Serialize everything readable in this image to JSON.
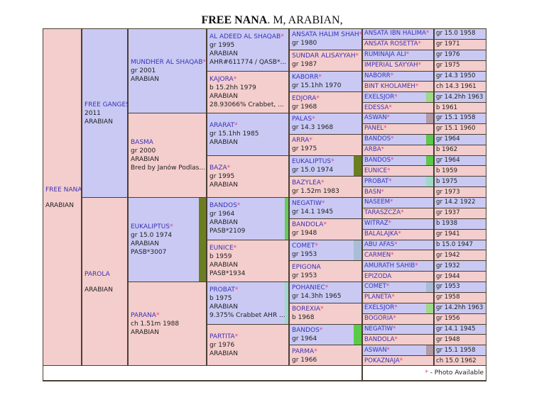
{
  "title": {
    "name": "FREE NANA",
    "rest": ". M, ARABIAN,"
  },
  "legend": {
    "star": "*",
    "text": " - Photo Available"
  },
  "colors": {
    "male": "#c9c9f4",
    "female": "#f4cdcd",
    "name": "#3b33b5",
    "star": "#e2427a"
  },
  "pedigree": [
    [
      {
        "name": "FREE NANA",
        "sex": "f",
        "gap": true,
        "lines": [
          "ARABIAN"
        ]
      }
    ],
    [
      {
        "name": "FREE GANGES",
        "sex": "m",
        "lines": [
          "2011",
          "ARABIAN"
        ]
      },
      {
        "name": "PAROLA",
        "sex": "f",
        "gap": true,
        "lines": [
          "ARABIAN"
        ]
      }
    ],
    [
      {
        "name": "MUNDHER AL SHAQAB",
        "star": "*",
        "sex": "m",
        "lines": [
          "gr 2001",
          "ARABIAN"
        ]
      },
      {
        "name": "BASMA",
        "sex": "f",
        "lines": [
          "gr 2000",
          "ARABIAN",
          "Bred by Janów Podlas..."
        ]
      },
      {
        "name": "EUKALIPTUS",
        "star": "*",
        "sex": "m",
        "marker": "#6b7f22",
        "lines": [
          "gr 15.0 1974",
          "ARABIAN",
          "PASB*3007"
        ]
      },
      {
        "name": "PARANA",
        "star": "*",
        "sex": "f",
        "lines": [
          "ch 1.51m 1988",
          "ARABIAN"
        ]
      }
    ],
    [
      {
        "name": "AL ADEED AL SHAQAB",
        "star": "*",
        "sex": "m",
        "lines": [
          "gr 1995",
          "ARABIAN",
          "AHR#611774 / QASB*..."
        ]
      },
      {
        "name": "KAJORA",
        "star": "*",
        "sex": "f",
        "lines": [
          "b 15.2hh 1979",
          "ARABIAN",
          "28.93066% Crabbet, ..."
        ]
      },
      {
        "name": "ARARAT",
        "star": "*",
        "sex": "m",
        "lines": [
          "gr 15.1hh 1985",
          "ARABIAN"
        ]
      },
      {
        "name": "BAZA",
        "star": "*",
        "sex": "f",
        "lines": [
          "gr 1995",
          "ARABIAN"
        ]
      },
      {
        "name": "BANDOS",
        "star": "*",
        "sex": "m",
        "marker": "#66cc55",
        "lines": [
          "gr 1964",
          "ARABIAN",
          "PASB*2109"
        ]
      },
      {
        "name": "EUNICE",
        "star": "*",
        "sex": "f",
        "lines": [
          "b 1959",
          "ARABIAN",
          "PASB*1934"
        ]
      },
      {
        "name": "PROBAT",
        "star": "*",
        "sex": "m",
        "marker": "#9ddbc8",
        "lines": [
          "b 1975",
          "ARABIAN",
          "9.375% Crabbet AHR ..."
        ]
      },
      {
        "name": "PARTITA",
        "star": "*",
        "sex": "f",
        "lines": [
          "gr 1976",
          "ARABIAN"
        ]
      }
    ],
    [
      {
        "name": "ANSATA HALIM SHAH",
        "star": "*",
        "sex": "m",
        "lines": [
          "gr 1980"
        ]
      },
      {
        "name": "SUNDAR ALISAYYAH",
        "star": "*",
        "sex": "f",
        "lines": [
          "gr 1987"
        ]
      },
      {
        "name": "KABORR",
        "star": "*",
        "sex": "m",
        "lines": [
          "gr 15.1hh 1970"
        ]
      },
      {
        "name": "EDJORA",
        "star": "*",
        "sex": "f",
        "lines": [
          "gr 1968"
        ]
      },
      {
        "name": "PALAS",
        "star": "*",
        "sex": "m",
        "lines": [
          "gr 14.3 1968"
        ]
      },
      {
        "name": "ARRA",
        "star": "*",
        "sex": "f",
        "lines": [
          "gr 1975"
        ]
      },
      {
        "name": "EUKALIPTUS",
        "star": "*",
        "sex": "m",
        "marker": "#6b7f22",
        "lines": [
          "gr 15.0 1974"
        ]
      },
      {
        "name": "BAZYLEA",
        "star": "*",
        "sex": "f",
        "lines": [
          "gr 1.52m 1983"
        ]
      },
      {
        "name": "NEGATIW",
        "star": "*",
        "sex": "m",
        "lines": [
          "gr 14.1 1945"
        ]
      },
      {
        "name": "BANDOLA",
        "star": "*",
        "sex": "f",
        "lines": [
          "gr 1948"
        ]
      },
      {
        "name": "COMET",
        "star": "*",
        "sex": "m",
        "marker": "#a9bdd6",
        "lines": [
          "gr 1953"
        ]
      },
      {
        "name": "EPIGONA",
        "sex": "f",
        "lines": [
          "gr 1953"
        ]
      },
      {
        "name": "POHANIEC",
        "star": "*",
        "sex": "m",
        "lines": [
          "gr 14.3hh 1965"
        ]
      },
      {
        "name": "BOREXIA",
        "star": "*",
        "sex": "f",
        "lines": [
          "b 1968"
        ]
      },
      {
        "name": "BANDOS",
        "star": "*",
        "sex": "m",
        "marker": "#5cc94a",
        "lines": [
          "gr 1964"
        ]
      },
      {
        "name": "PARMA",
        "star": "*",
        "sex": "f",
        "lines": [
          "gr 1966"
        ]
      }
    ],
    [
      {
        "name": "ANSATA IBN HALIMA",
        "star": "*",
        "sex": "m",
        "info": "gr 15.0 1958"
      },
      {
        "name": "ANSATA ROSETTA",
        "star": "*",
        "sex": "f",
        "info": "gr 1971"
      },
      {
        "name": "RUMINAJA ALI",
        "star": "*",
        "sex": "m",
        "info": "gr 1976"
      },
      {
        "name": "IMPERIAL SAYYAH",
        "star": "*",
        "sex": "f",
        "info": "gr 1975"
      },
      {
        "name": "NABORR",
        "star": "*",
        "sex": "m",
        "info": "gr 14.3 1950"
      },
      {
        "name": "BINT KHOLAMEH",
        "star": "*",
        "sex": "f",
        "info": "ch 14.3 1961"
      },
      {
        "name": "EXELSJOR",
        "star": "*",
        "sex": "m",
        "marker": "#9fd98a",
        "info": "gr 14.2hh 1963"
      },
      {
        "name": "EDESSA",
        "star": "*",
        "sex": "f",
        "info": "b 1961"
      },
      {
        "name": "ASWAN",
        "star": "*",
        "sex": "m",
        "marker": "#b29aa6",
        "info": "gr 15.1 1958"
      },
      {
        "name": "PANEL",
        "star": "*",
        "sex": "f",
        "info": "gr 15.1 1960"
      },
      {
        "name": "BANDOS",
        "star": "*",
        "sex": "m",
        "marker": "#5cc94a",
        "info": "gr 1964"
      },
      {
        "name": "ARBA",
        "star": "*",
        "sex": "f",
        "info": "b 1962"
      },
      {
        "name": "BANDOS",
        "star": "*",
        "sex": "m",
        "marker": "#5cc94a",
        "info": "gr 1964"
      },
      {
        "name": "EUNICE",
        "star": "*",
        "sex": "f",
        "info": "b 1959"
      },
      {
        "name": "PROBAT",
        "star": "*",
        "sex": "m",
        "marker": "#9ddbc8",
        "info": "b 1975"
      },
      {
        "name": "BASN",
        "star": "*",
        "sex": "f",
        "info": "gr 1973"
      },
      {
        "name": "NASEEM",
        "star": "*",
        "sex": "m",
        "info": "gr 14.2 1922"
      },
      {
        "name": "TARASZCZA",
        "star": "*",
        "sex": "f",
        "info": "gr 1937"
      },
      {
        "name": "WITRAZ",
        "star": "*",
        "sex": "m",
        "info": "b 1938"
      },
      {
        "name": "BALALAJKA",
        "star": "*",
        "sex": "f",
        "info": "gr 1941"
      },
      {
        "name": "ABU AFAS",
        "star": "*",
        "sex": "m",
        "info": "b 15.0 1947"
      },
      {
        "name": "CARMEN",
        "star": "*",
        "sex": "f",
        "info": "gr 1942"
      },
      {
        "name": "AMURATH SAHIB",
        "star": "*",
        "sex": "m",
        "info": "gr 1932"
      },
      {
        "name": "EPIZODA",
        "sex": "f",
        "info": "gr 1944"
      },
      {
        "name": "COMET",
        "star": "*",
        "sex": "m",
        "marker": "#a9bdd6",
        "info": "gr 1953"
      },
      {
        "name": "PLANETA",
        "star": "*",
        "sex": "f",
        "info": "gr 1958"
      },
      {
        "name": "EXELSJOR",
        "star": "*",
        "sex": "m",
        "marker": "#9fd98a",
        "info": "gr 14.2hh 1963"
      },
      {
        "name": "BOGORIA",
        "star": "*",
        "sex": "f",
        "info": "gr 1956"
      },
      {
        "name": "NEGATIW",
        "star": "*",
        "sex": "m",
        "info": "gr 14.1 1945"
      },
      {
        "name": "BANDOLA",
        "star": "*",
        "sex": "f",
        "info": "gr 1948"
      },
      {
        "name": "ASWAN",
        "star": "*",
        "sex": "m",
        "marker": "#b29aa6",
        "info": "gr 15.1 1958"
      },
      {
        "name": "POKAZNAJA",
        "star": "*",
        "sex": "f",
        "info": "ch 15.0 1962"
      }
    ]
  ]
}
